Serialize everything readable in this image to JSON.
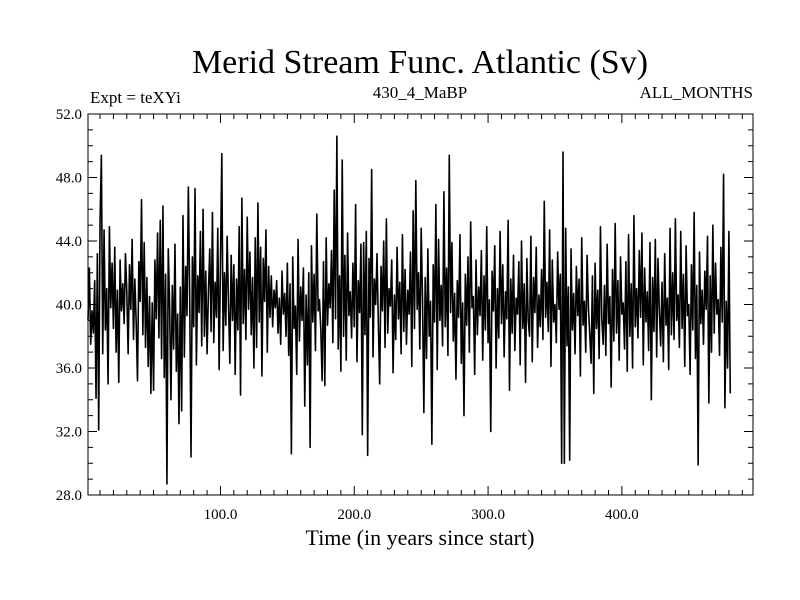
{
  "chart_data": {
    "type": "line",
    "title": "Merid Stream Func. Atlantic (Sv)",
    "header_left": "Expt = teXYi",
    "header_center": "430_4_MaBP",
    "header_right": "ALL_MONTHS",
    "xlabel": "Time (in years since start)",
    "ylabel": "",
    "xlim": [
      1,
      498
    ],
    "ylim": [
      28,
      52
    ],
    "x_ticks": [
      100,
      200,
      300,
      400
    ],
    "x_tick_labels": [
      "100.0",
      "200.0",
      "300.0",
      "400.0"
    ],
    "y_ticks": [
      28,
      32,
      36,
      40,
      44,
      48,
      52
    ],
    "y_tick_labels": [
      "28.0",
      "32.0",
      "36.0",
      "40.0",
      "44.0",
      "48.0",
      "52.0"
    ],
    "grid": false,
    "line_color": "#000000",
    "series": [
      {
        "x_start": 1,
        "x_step": 1,
        "values": [
          39.0,
          42.3,
          37.5,
          39.6,
          38.2,
          41.5,
          34.1,
          43.2,
          32.1,
          45.2,
          49.4,
          36.9,
          44.7,
          38.4,
          41.0,
          35.0,
          44.9,
          39.8,
          42.6,
          38.5,
          43.6,
          37.0,
          40.9,
          35.1,
          42.8,
          39.6,
          41.3,
          38.8,
          43.2,
          40.8,
          36.9,
          42.5,
          39.7,
          44.1,
          37.8,
          41.6,
          38.9,
          35.2,
          42.7,
          40.2,
          46.6,
          38.1,
          43.9,
          37.3,
          41.7,
          36.1,
          40.5,
          34.4,
          40.1,
          34.6,
          42.8,
          39.1,
          44.5,
          37.9,
          45.3,
          36.6,
          46.2,
          35.4,
          41.9,
          28.7,
          43.5,
          39.9,
          34.0,
          41.2,
          37.2,
          43.8,
          35.8,
          39.4,
          32.5,
          41.1,
          33.3,
          45.6,
          36.7,
          42.4,
          39.3,
          47.4,
          40.5,
          30.4,
          43.0,
          38.6,
          47.3,
          36.2,
          41.8,
          39.5,
          44.6,
          37.4,
          46.0,
          38.0,
          42.1,
          36.9,
          40.8,
          43.5,
          38.3,
          45.8,
          37.6,
          41.4,
          39.2,
          44.8,
          35.9,
          42.6,
          49.5,
          37.1,
          42.0,
          38.7,
          44.3,
          40.1,
          36.3,
          43.1,
          39.0,
          42.5,
          35.6,
          41.6,
          38.4,
          44.9,
          34.3,
          46.7,
          38.8,
          42.2,
          37.8,
          45.5,
          39.7,
          43.3,
          38.1,
          41.7,
          36.0,
          44.2,
          37.3,
          46.4,
          38.9,
          43.6,
          35.5,
          42.9,
          40.2,
          44.7,
          37.0,
          42.4,
          39.2,
          41.8,
          38.6,
          40.9,
          39.8,
          41.5,
          38.2,
          40.4,
          37.5,
          42.1,
          39.4,
          40.7,
          38.0,
          42.6,
          36.8,
          41.3,
          30.6,
          43.0,
          38.5,
          39.9,
          35.6,
          44.1,
          37.7,
          41.1,
          39.0,
          42.3,
          33.6,
          40.6,
          36.2,
          42.0,
          31.0,
          43.7,
          38.9,
          41.9,
          37.1,
          45.7,
          39.6,
          40.3,
          38.4,
          35.2,
          42.7,
          34.9,
          44.2,
          38.7,
          41.3,
          39.8,
          43.4,
          37.6,
          47.2,
          39.1,
          50.6,
          37.2,
          41.8,
          35.8,
          49.1,
          38.0,
          43.1,
          36.5,
          44.5,
          39.3,
          40.8,
          37.9,
          42.6,
          38.6,
          46.3,
          36.4,
          41.5,
          39.5,
          43.8,
          31.8,
          43.9,
          38.1,
          44.6,
          30.5,
          42.9,
          39.2,
          48.5,
          36.7,
          41.6,
          40.0,
          43.2,
          38.8,
          35.0,
          42.4,
          39.6,
          44.0,
          37.3,
          45.4,
          38.2,
          41.0,
          39.9,
          42.8,
          35.7,
          40.6,
          37.8,
          43.6,
          39.1,
          41.4,
          36.9,
          44.4,
          38.3,
          42.2,
          37.5,
          40.9,
          39.4,
          43.3,
          36.1,
          45.9,
          38.5,
          47.8,
          39.7,
          42.0,
          37.2,
          44.8,
          40.4,
          33.2,
          41.7,
          36.6,
          43.5,
          38.0,
          40.2,
          31.2,
          42.5,
          38.9,
          46.3,
          35.9,
          44.1,
          39.0,
          41.2,
          37.4,
          47.1,
          38.6,
          42.3,
          36.8,
          49.4,
          39.5,
          43.9,
          37.7,
          40.7,
          35.3,
          41.5,
          39.2,
          44.4,
          36.3,
          40.1,
          33.0,
          41.9,
          38.7,
          43.0,
          37.0,
          45.2,
          39.8,
          40.5,
          35.6,
          42.8,
          38.1,
          41.1,
          39.3,
          43.4,
          36.5,
          41.8,
          38.4,
          44.9,
          37.6,
          40.3,
          32.0,
          42.1,
          39.6,
          43.7,
          36.0,
          41.0,
          37.9,
          44.6,
          38.8,
          42.5,
          36.7,
          40.8,
          39.1,
          45.3,
          34.6,
          41.6,
          38.2,
          43.1,
          37.1,
          40.4,
          39.4,
          42.7,
          36.2,
          44.0,
          38.5,
          41.3,
          35.1,
          42.9,
          39.0,
          38.0,
          44.3,
          36.4,
          41.7,
          39.5,
          43.6,
          37.3,
          40.6,
          38.6,
          42.2,
          37.8,
          46.5,
          39.2,
          41.4,
          38.3,
          44.7,
          36.1,
          42.8,
          38.9,
          40.0,
          37.6,
          43.3,
          39.7,
          41.9,
          30.0,
          49.6,
          30.0,
          44.8,
          37.4,
          41.1,
          30.2,
          43.5,
          38.4,
          40.7,
          36.9,
          42.4,
          39.3,
          41.6,
          35.5,
          44.2,
          38.7,
          40.2,
          37.0,
          43.1,
          39.8,
          38.1,
          36.3,
          41.8,
          34.4,
          42.6,
          38.5,
          40.9,
          36.6,
          44.9,
          39.1,
          37.5,
          41.2,
          36.8,
          43.8,
          38.8,
          40.5,
          34.8,
          42.2,
          37.7,
          45.1,
          38.2,
          41.5,
          36.5,
          43.0,
          39.4,
          40.1,
          37.2,
          42.7,
          35.8,
          44.4,
          38.0,
          41.3,
          36.0,
          45.6,
          38.6,
          41.0,
          37.9,
          43.4,
          39.2,
          44.5,
          36.2,
          42.3,
          38.9,
          40.8,
          37.1,
          43.9,
          34.0,
          41.7,
          38.3,
          44.1,
          36.7,
          42.9,
          39.6,
          37.4,
          41.4,
          36.4,
          43.2,
          38.7,
          40.4,
          35.9,
          44.8,
          38.1,
          42.0,
          37.8,
          45.4,
          39.0,
          40.6,
          37.3,
          44.6,
          38.5,
          41.9,
          36.1,
          43.7,
          39.3,
          40.0,
          35.6,
          42.5,
          38.4,
          45.8,
          36.6,
          41.2,
          29.9,
          43.3,
          38.8,
          40.9,
          37.5,
          42.1,
          39.7,
          44.3,
          33.8,
          41.8,
          37.0,
          45.0,
          38.2,
          42.6,
          39.4,
          40.3,
          36.8,
          43.6,
          38.9,
          48.2,
          33.5,
          40.2,
          36.0,
          44.6,
          34.4
        ]
      }
    ]
  }
}
